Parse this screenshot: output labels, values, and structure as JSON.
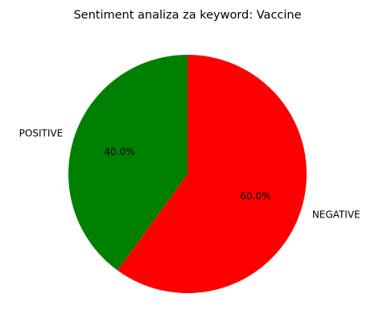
{
  "chart_data": {
    "type": "pie",
    "title": "Sentiment analiza za keyword: Vaccine",
    "slices": [
      {
        "label": "POSITIVE",
        "value": 40.0,
        "pct_label": "40.0%",
        "color": "#008000"
      },
      {
        "label": "NEGATIVE",
        "value": 60.0,
        "pct_label": "60.0%",
        "color": "#ff0000"
      }
    ],
    "start_angle_deg": 90,
    "direction": "counterclockwise"
  }
}
